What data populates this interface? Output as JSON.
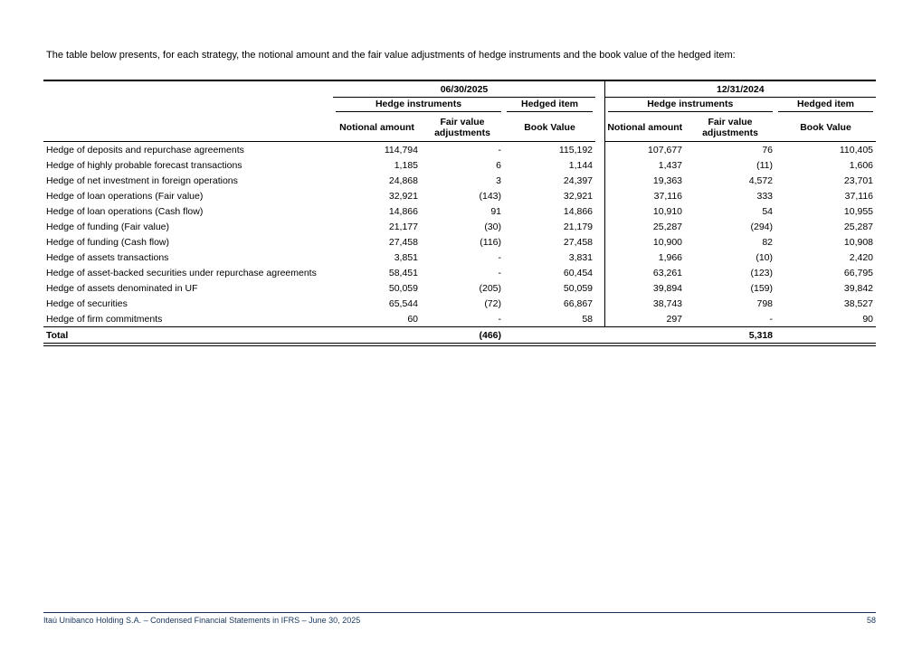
{
  "page": {
    "intro_text": "The table below presents, for each strategy, the notional amount and the fair value adjustments of hedge instruments and the book value of the hedged item:",
    "footer_text": "Itaú Unibanco Holding S.A. – Condensed Financial Statements in IFRS – June 30, 2025",
    "page_number": "58",
    "colors": {
      "text": "#000000",
      "footer_accent": "#17365D"
    }
  },
  "table": {
    "period_headers": [
      "06/30/2025",
      "12/31/2024"
    ],
    "group_headers": [
      "Hedge instruments",
      "Hedged item"
    ],
    "column_headers": [
      "Notional amount",
      "Fair value adjustments",
      "Book Value"
    ],
    "rows": [
      {
        "label": "Hedge of deposits and repurchase agreements",
        "values": [
          "114,794",
          "-",
          "115,192",
          "107,677",
          "76",
          "110,405"
        ]
      },
      {
        "label": "Hedge of highly probable forecast transactions",
        "values": [
          "1,185",
          "6",
          "1,144",
          "1,437",
          "(11)",
          "1,606"
        ]
      },
      {
        "label": "Hedge of net investment in foreign operations",
        "values": [
          "24,868",
          "3",
          "24,397",
          "19,363",
          "4,572",
          "23,701"
        ]
      },
      {
        "label": "Hedge of loan operations (Fair value)",
        "values": [
          "32,921",
          "(143)",
          "32,921",
          "37,116",
          "333",
          "37,116"
        ]
      },
      {
        "label": "Hedge of loan operations (Cash flow)",
        "values": [
          "14,866",
          "91",
          "14,866",
          "10,910",
          "54",
          "10,955"
        ]
      },
      {
        "label": "Hedge of funding (Fair value)",
        "values": [
          "21,177",
          "(30)",
          "21,179",
          "25,287",
          "(294)",
          "25,287"
        ]
      },
      {
        "label": "Hedge of funding (Cash flow)",
        "values": [
          "27,458",
          "(116)",
          "27,458",
          "10,900",
          "82",
          "10,908"
        ]
      },
      {
        "label": "Hedge of assets transactions",
        "values": [
          "3,851",
          "-",
          "3,831",
          "1,966",
          "(10)",
          "2,420"
        ]
      },
      {
        "label": "Hedge of asset-backed securities under repurchase agreements",
        "values": [
          "58,451",
          "-",
          "60,454",
          "63,261",
          "(123)",
          "66,795"
        ]
      },
      {
        "label": "Hedge of assets denominated in UF",
        "values": [
          "50,059",
          "(205)",
          "50,059",
          "39,894",
          "(159)",
          "39,842"
        ]
      },
      {
        "label": "Hedge of securities",
        "values": [
          "65,544",
          "(72)",
          "66,867",
          "38,743",
          "798",
          "38,527"
        ]
      },
      {
        "label": "Hedge of firm commitments",
        "values": [
          "60",
          "-",
          "58",
          "297",
          "-",
          "90"
        ]
      }
    ],
    "total": {
      "label": "Total",
      "values": [
        "",
        "(466)",
        "",
        "",
        "5,318",
        ""
      ]
    }
  }
}
